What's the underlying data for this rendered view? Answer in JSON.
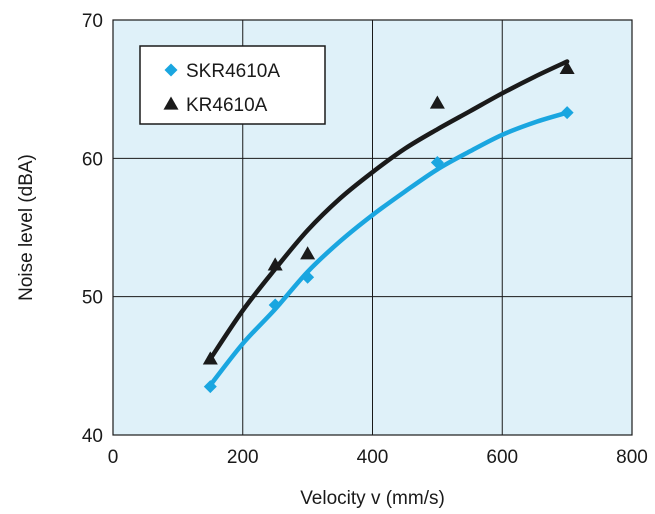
{
  "chart_data": {
    "type": "scatter",
    "xlabel": "Velocity v (mm/s)",
    "ylabel": "Noise level (dBA)",
    "xlim": [
      0,
      800
    ],
    "ylim": [
      40,
      70
    ],
    "xticks": [
      0,
      200,
      400,
      600,
      800
    ],
    "yticks": [
      40,
      50,
      60,
      70
    ],
    "grid": true,
    "legend_position": "top-left",
    "colors": {
      "plot_background": "#dff1f9",
      "grid": "#1a1a1a"
    },
    "series": [
      {
        "name": "SKR4610A",
        "marker": "diamond",
        "color": "#1aa6e0",
        "points": [
          {
            "x": 150,
            "y": 43.5
          },
          {
            "x": 250,
            "y": 49.4
          },
          {
            "x": 300,
            "y": 51.4
          },
          {
            "x": 500,
            "y": 59.7
          },
          {
            "x": 700,
            "y": 63.3
          }
        ],
        "fit_curve": [
          {
            "x": 150,
            "y": 43.6
          },
          {
            "x": 200,
            "y": 46.6
          },
          {
            "x": 250,
            "y": 49.1
          },
          {
            "x": 300,
            "y": 51.8
          },
          {
            "x": 350,
            "y": 54.0
          },
          {
            "x": 400,
            "y": 55.9
          },
          {
            "x": 450,
            "y": 57.6
          },
          {
            "x": 500,
            "y": 59.2
          },
          {
            "x": 550,
            "y": 60.5
          },
          {
            "x": 600,
            "y": 61.7
          },
          {
            "x": 650,
            "y": 62.6
          },
          {
            "x": 700,
            "y": 63.3
          }
        ]
      },
      {
        "name": "KR4610A",
        "marker": "triangle",
        "color": "#1a1a1a",
        "points": [
          {
            "x": 150,
            "y": 45.5
          },
          {
            "x": 250,
            "y": 52.3
          },
          {
            "x": 300,
            "y": 53.1
          },
          {
            "x": 500,
            "y": 64.0
          },
          {
            "x": 700,
            "y": 66.5
          }
        ],
        "fit_curve": [
          {
            "x": 150,
            "y": 45.5
          },
          {
            "x": 200,
            "y": 49.0
          },
          {
            "x": 250,
            "y": 52.0
          },
          {
            "x": 300,
            "y": 54.8
          },
          {
            "x": 350,
            "y": 57.1
          },
          {
            "x": 400,
            "y": 59.0
          },
          {
            "x": 450,
            "y": 60.7
          },
          {
            "x": 500,
            "y": 62.1
          },
          {
            "x": 550,
            "y": 63.4
          },
          {
            "x": 600,
            "y": 64.7
          },
          {
            "x": 650,
            "y": 65.9
          },
          {
            "x": 700,
            "y": 67.0
          }
        ]
      }
    ]
  }
}
